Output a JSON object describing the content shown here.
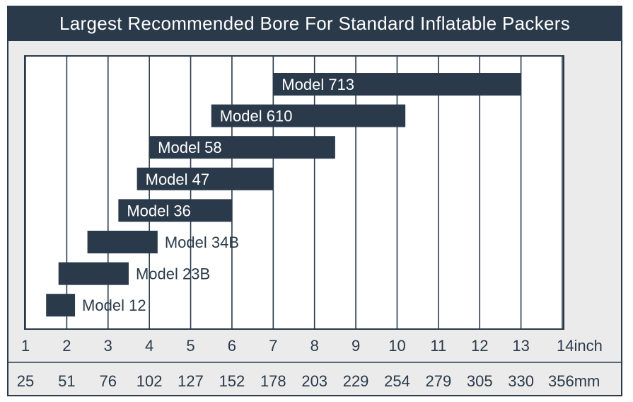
{
  "title": "Largest Recommended Bore For Standard Inflatable Packers",
  "colors": {
    "dark": "#2a3a4a",
    "panel": "#ebebeb",
    "white": "#ffffff"
  },
  "chart_data": {
    "type": "bar",
    "orientation": "horizontal-range",
    "title": "Largest Recommended Bore For Standard Inflatable Packers",
    "xlim": [
      1,
      14
    ],
    "x_ticks_inch": [
      "1",
      "2",
      "3",
      "4",
      "5",
      "6",
      "7",
      "8",
      "9",
      "10",
      "11",
      "12",
      "13",
      "14inch"
    ],
    "x_ticks_mm": [
      "25",
      "51",
      "76",
      "102",
      "127",
      "152",
      "178",
      "203",
      "229",
      "254",
      "279",
      "305",
      "330",
      "356mm"
    ],
    "bars": [
      {
        "label": "Model 713",
        "start": 7.0,
        "end": 13.0
      },
      {
        "label": "Model 610",
        "start": 5.5,
        "end": 10.2
      },
      {
        "label": "Model 58",
        "start": 4.0,
        "end": 8.5
      },
      {
        "label": "Model 47",
        "start": 3.7,
        "end": 7.0
      },
      {
        "label": "Model 36",
        "start": 3.25,
        "end": 6.0
      },
      {
        "label": "Model 34B",
        "start": 2.5,
        "end": 4.2
      },
      {
        "label": "Model 23B",
        "start": 1.8,
        "end": 3.5
      },
      {
        "label": "Model 12",
        "start": 1.5,
        "end": 2.2
      }
    ]
  }
}
